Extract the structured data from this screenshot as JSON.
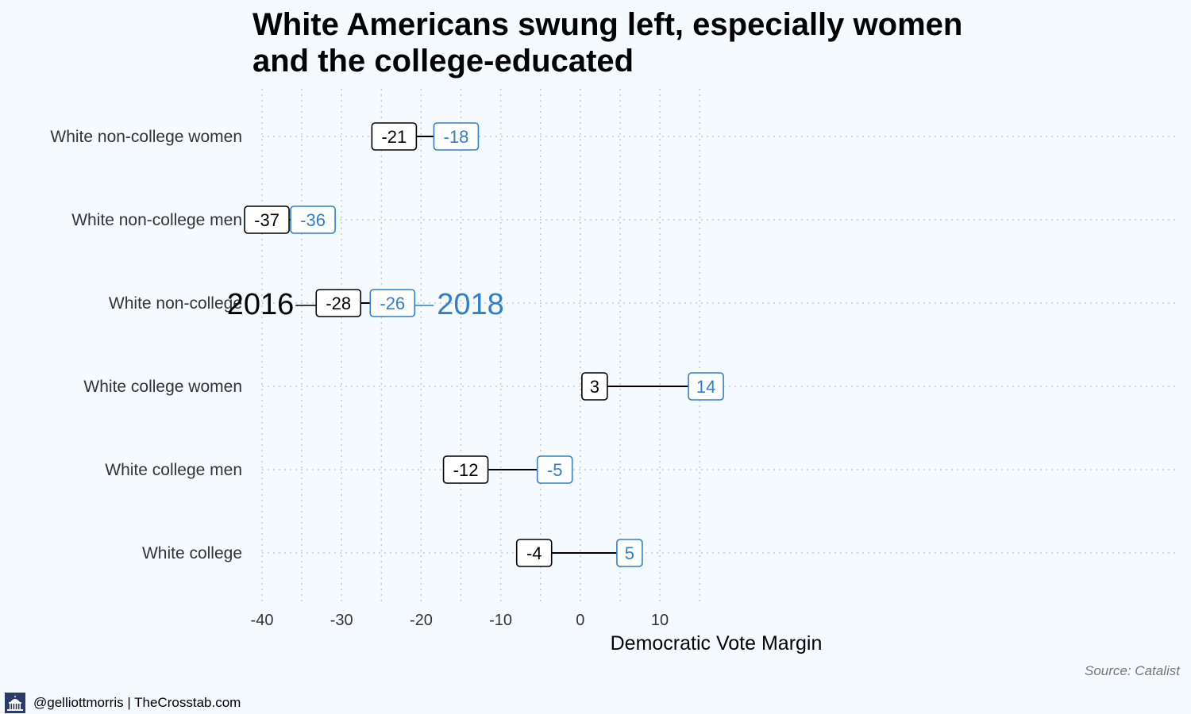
{
  "title_lines": [
    "White Americans swung left, especially women",
    "and the college-educated"
  ],
  "chart_data": {
    "type": "dumbbell",
    "xlabel": "Democratic Vote Margin",
    "xlim": [
      -40,
      17
    ],
    "xticks": [
      -40,
      -30,
      -20,
      -10,
      0,
      10
    ],
    "categories": [
      "White non-college women",
      "White non-college men",
      "White non-college",
      "White college women",
      "White college men",
      "White college"
    ],
    "series": [
      {
        "name": "2016",
        "color": "#000000",
        "values": [
          -21,
          -37,
          -28,
          3,
          -12,
          -4
        ]
      },
      {
        "name": "2018",
        "color": "#2f7fcc",
        "values": [
          -18,
          -36,
          -26,
          14,
          -5,
          5
        ]
      }
    ],
    "legend": {
      "row": "White non-college",
      "labels": [
        "2016",
        "2018"
      ]
    },
    "grid": true
  },
  "source": "Source: Catalist",
  "footer": {
    "credit": "@gelliottmorris | TheCrosstab.com",
    "logo_icon": "capitol-icon"
  }
}
